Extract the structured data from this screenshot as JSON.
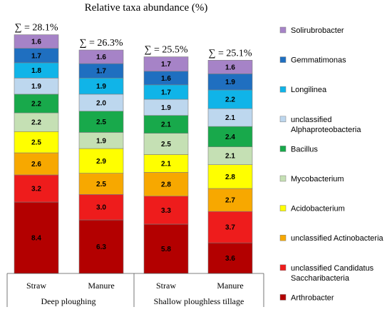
{
  "chart_data": {
    "type": "bar",
    "stacked": true,
    "title": "Relative taxa abundance (%)",
    "categories": [
      "Straw",
      "Manure",
      "Straw",
      "Manure"
    ],
    "groups": [
      {
        "label": "Deep ploughing",
        "categories": [
          0,
          1
        ]
      },
      {
        "label": "Shallow ploughless tillage",
        "categories": [
          2,
          3
        ]
      }
    ],
    "totals": [
      "∑ = 28.1%",
      "∑ = 26.3%",
      "∑ = 25.5%",
      "∑ = 25.1%"
    ],
    "series": [
      {
        "name": "Arthrobacter",
        "color": "#b30000",
        "values": [
          8.4,
          6.3,
          5.8,
          3.6
        ],
        "labels": [
          "8.4",
          "6.3",
          "5.8",
          "3.6"
        ]
      },
      {
        "name": "unclassified Candidatus Saccharibacteria",
        "color": "#ee1c1c",
        "values": [
          3.2,
          3.0,
          3.3,
          3.7
        ],
        "labels": [
          "3.2",
          "3.0",
          "3.3",
          "3.7"
        ]
      },
      {
        "name": "unclassified Actinobacteria",
        "color": "#f7a800",
        "values": [
          2.6,
          2.5,
          2.8,
          2.7
        ],
        "labels": [
          "2.6",
          "2.5",
          "2.8",
          "2.7"
        ]
      },
      {
        "name": "Acidobacterium",
        "color": "#ffff00",
        "values": [
          2.5,
          2.9,
          2.1,
          2.8
        ],
        "labels": [
          "2.5",
          "2.9",
          "2.1",
          "2.8"
        ]
      },
      {
        "name": "Mycobacterium",
        "color": "#c5e0b4",
        "values": [
          2.2,
          1.9,
          2.5,
          2.1
        ],
        "labels": [
          "2.2",
          "1.9",
          "2.5",
          "2.1"
        ]
      },
      {
        "name": "Bacillus",
        "color": "#18a94b",
        "values": [
          2.2,
          2.5,
          2.1,
          2.4
        ],
        "labels": [
          "2.2",
          "2.5",
          "2.1",
          "2.4"
        ]
      },
      {
        "name": "unclassified Alphaproteobacteria",
        "color": "#bdd7ee",
        "values": [
          1.9,
          2.0,
          1.9,
          2.1
        ],
        "labels": [
          "1.9",
          "2.0",
          "1.9",
          "2.1"
        ]
      },
      {
        "name": "Longilinea",
        "color": "#10b4e8",
        "values": [
          1.8,
          1.9,
          1.7,
          2.2
        ],
        "labels": [
          "1.8",
          "1.9",
          "1.7",
          "2.2"
        ]
      },
      {
        "name": "Gemmatimonas",
        "color": "#1f6fc0",
        "values": [
          1.7,
          1.7,
          1.6,
          1.9
        ],
        "labels": [
          "1.7",
          "1.7",
          "1.6",
          "1.9"
        ]
      },
      {
        "name": "Solirubrobacter",
        "color": "#a683c7",
        "values": [
          1.6,
          1.6,
          1.7,
          1.6
        ],
        "labels": [
          "1.6",
          "1.6",
          "1.7",
          "1.6"
        ]
      }
    ],
    "legend": {
      "placement": "right",
      "order_top_to_bottom": [
        9,
        8,
        7,
        6,
        5,
        4,
        3,
        2,
        1,
        0
      ],
      "entries": [
        [
          "Solirubrobacter"
        ],
        [
          "Gemmatimonas"
        ],
        [
          "Longilinea"
        ],
        [
          "unclassified",
          "Alphaproteobacteria"
        ],
        [
          "Bacillus"
        ],
        [
          "Mycobacterium"
        ],
        [
          "Acidobacterium"
        ],
        [
          "unclassified Actinobacteria"
        ],
        [
          "unclassified Candidatus",
          "Saccharibacteria"
        ],
        [
          "Arthrobacter"
        ]
      ]
    },
    "grid": false
  }
}
